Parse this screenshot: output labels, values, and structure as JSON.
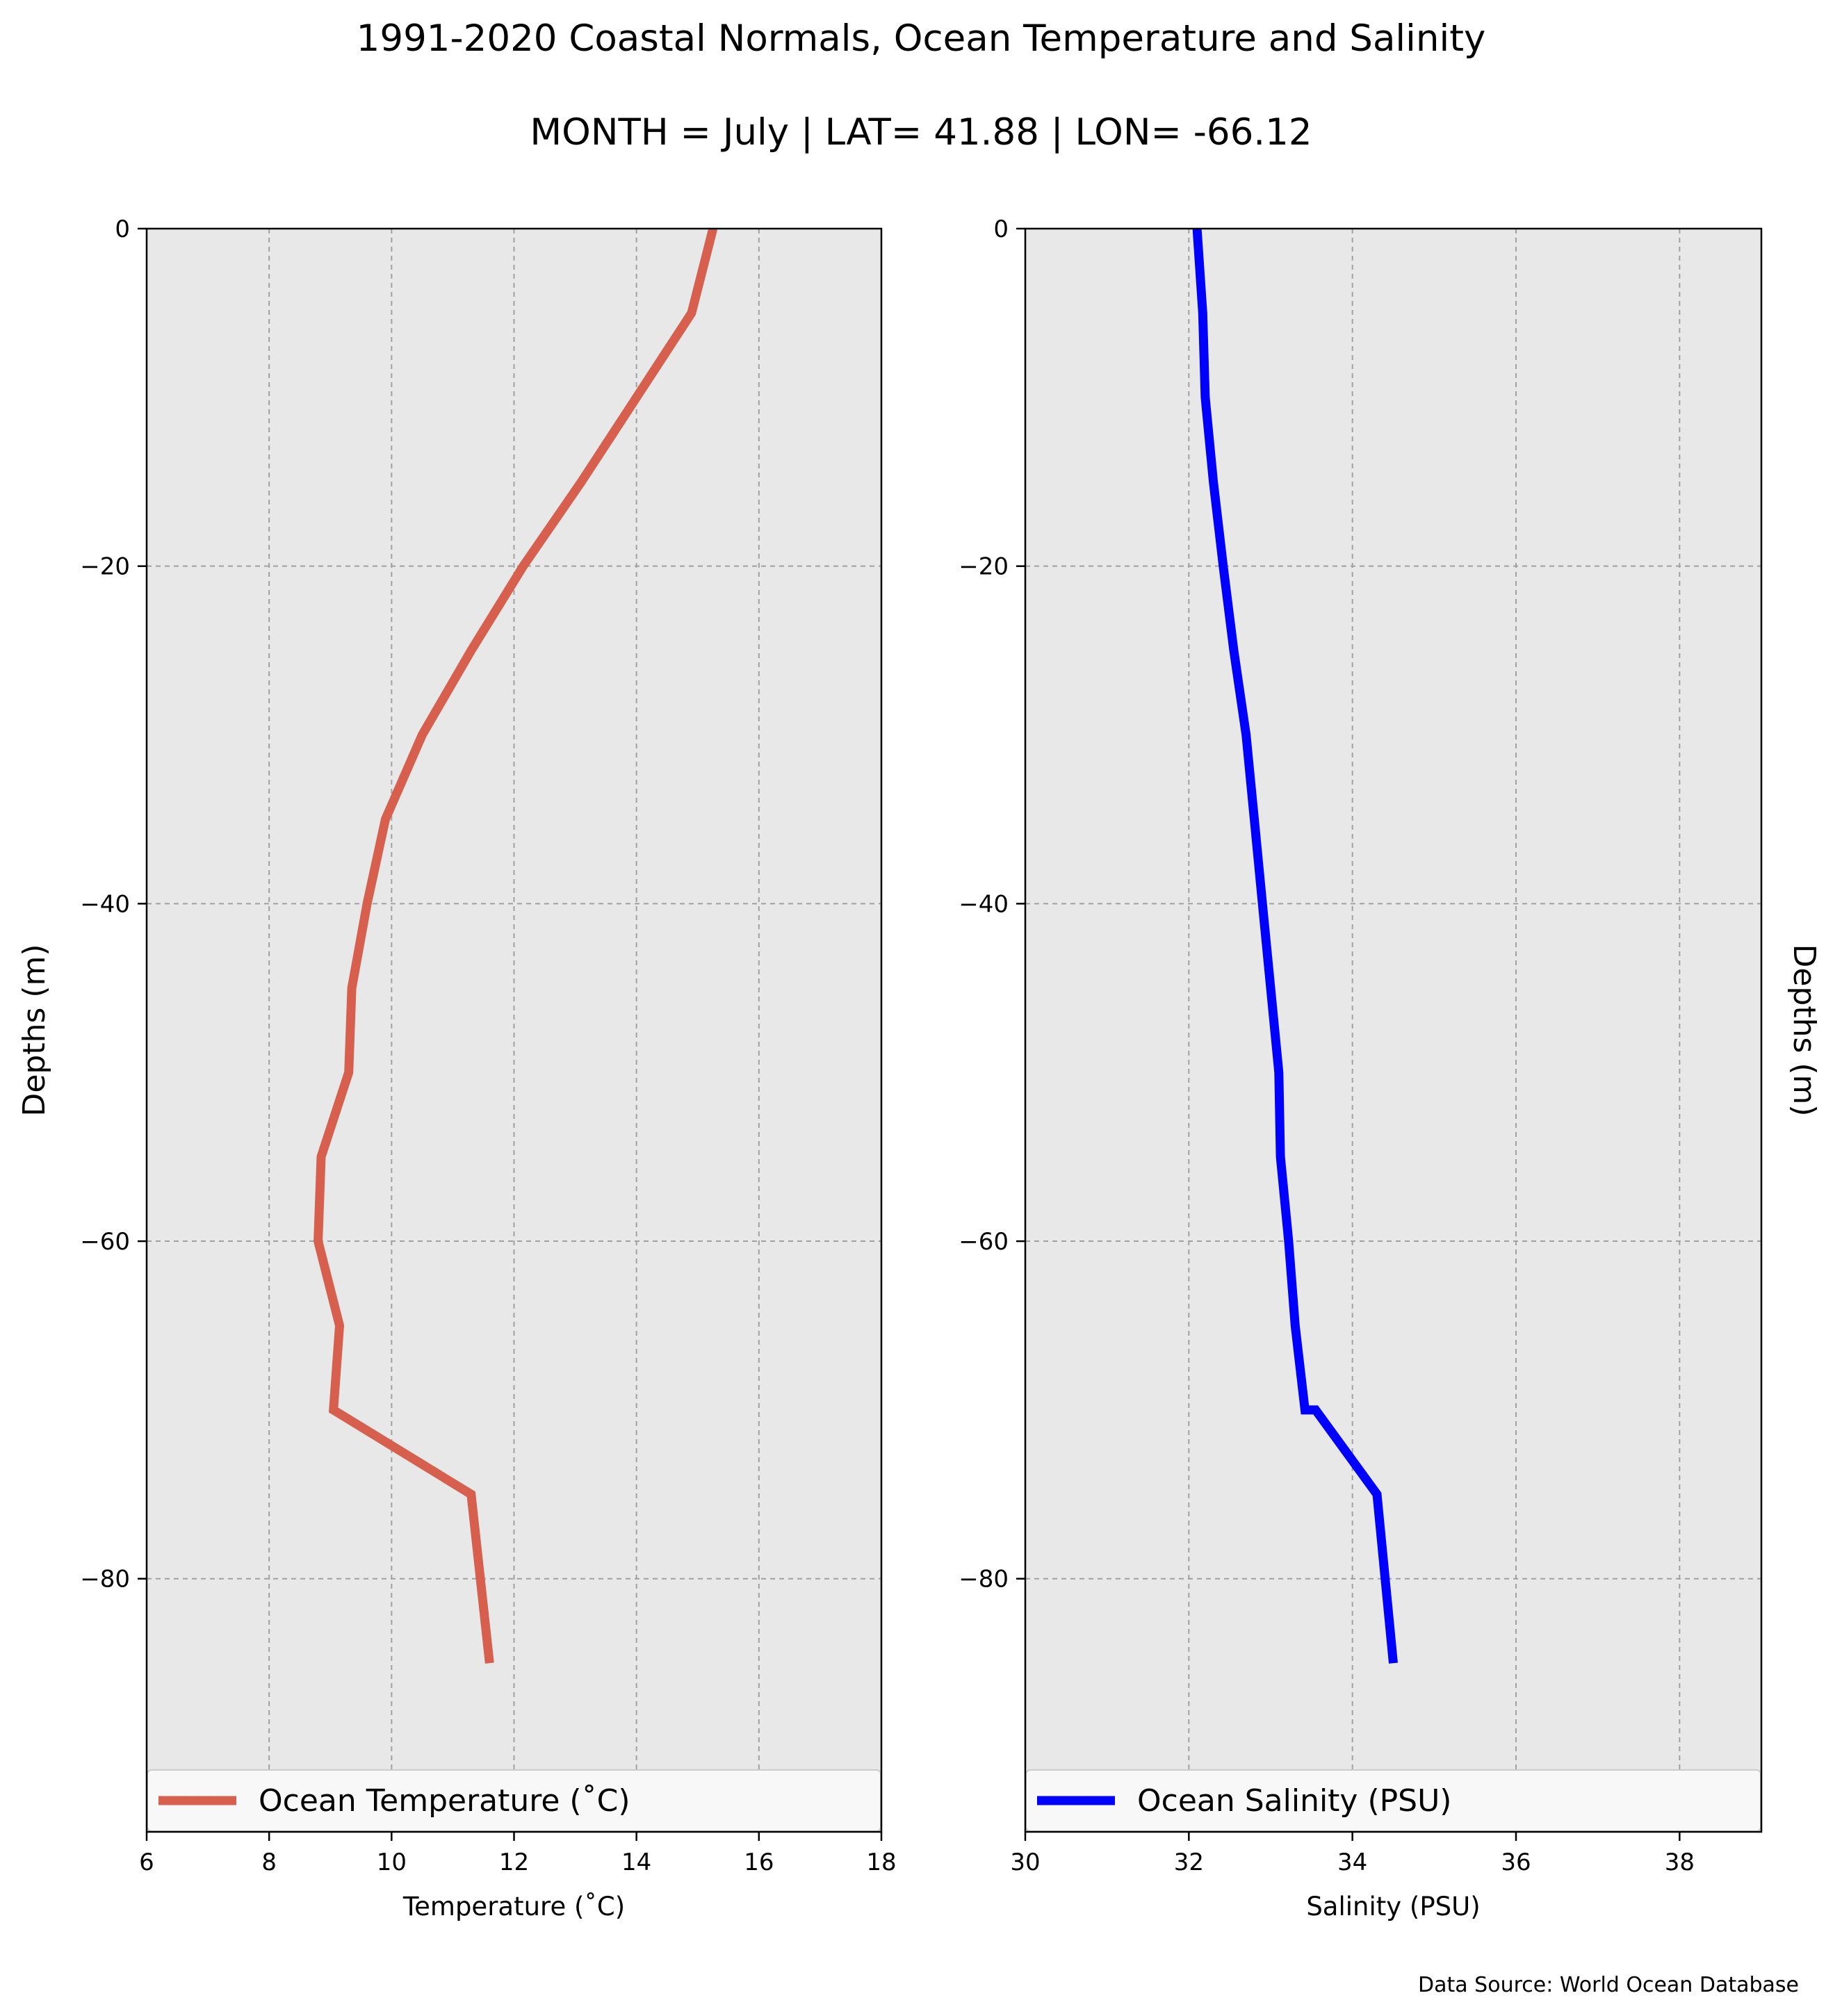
{
  "title_line1": "1991-2020 Coastal Normals, Ocean Temperature and Salinity",
  "title_line2": "MONTH = July | LAT= 41.88 | LON= -66.12",
  "source_note": "Data Source: World Ocean Database",
  "chart_data": [
    {
      "type": "line",
      "panel": "left",
      "xlabel": "Temperature (˚C)",
      "ylabel": "Depths (m)",
      "xlim": [
        6,
        18
      ],
      "ylim": [
        -95,
        0
      ],
      "xticks": [
        6,
        8,
        10,
        12,
        14,
        16,
        18
      ],
      "xtick_labels": [
        "6",
        "8",
        "10",
        "12",
        "14",
        "16",
        "18"
      ],
      "yticks": [
        0,
        -20,
        -40,
        -60,
        -80
      ],
      "ytick_labels": [
        "0",
        "−20",
        "−40",
        "−60",
        "−80"
      ],
      "grid": true,
      "legend_position": "bottom",
      "series": [
        {
          "name": "Ocean Temperature (˚C)",
          "color": "#d65f4e",
          "x": [
            15.25,
            14.9,
            14.0,
            13.1,
            12.15,
            11.3,
            10.5,
            9.9,
            9.6,
            9.35,
            9.3,
            8.85,
            8.8,
            9.15,
            9.05,
            11.3,
            11.6
          ],
          "y": [
            0,
            -5,
            -10,
            -15,
            -20,
            -25,
            -30,
            -35,
            -40,
            -45,
            -50,
            -55,
            -60,
            -65,
            -70,
            -75,
            -85
          ]
        }
      ]
    },
    {
      "type": "line",
      "panel": "right",
      "xlabel": "Salinity (PSU)",
      "ylabel": "Depths (m)",
      "xlim": [
        30,
        39
      ],
      "ylim": [
        -95,
        0
      ],
      "xticks": [
        30,
        32,
        34,
        36,
        38
      ],
      "xtick_labels": [
        "30",
        "32",
        "34",
        "36",
        "38"
      ],
      "yticks": [
        0,
        -20,
        -40,
        -60,
        -80
      ],
      "ytick_labels": [
        "0",
        "−20",
        "−40",
        "−60",
        "−80"
      ],
      "grid": true,
      "legend_position": "bottom",
      "series": [
        {
          "name": "Ocean Salinity (PSU)",
          "color": "#0000ff",
          "x": [
            32.1,
            32.17,
            32.2,
            32.3,
            32.42,
            32.55,
            32.7,
            32.8,
            32.9,
            33.0,
            33.1,
            33.12,
            33.22,
            33.3,
            33.42,
            33.55,
            34.3,
            34.5
          ],
          "y": [
            0,
            -5,
            -10,
            -15,
            -20,
            -25,
            -30,
            -35,
            -40,
            -45,
            -50,
            -55,
            -60,
            -65,
            -70,
            -70,
            -75,
            -85
          ]
        }
      ]
    }
  ]
}
